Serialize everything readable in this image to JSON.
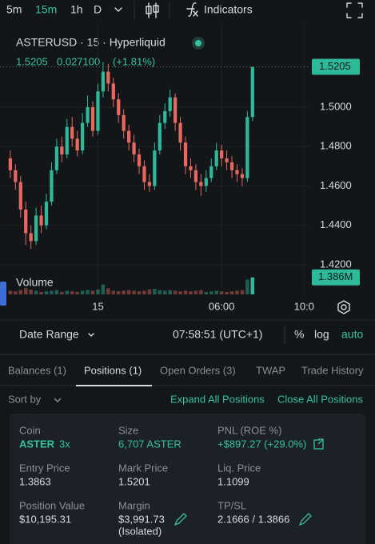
{
  "toolbar": {
    "intervals": [
      "5m",
      "15m",
      "1h",
      "D"
    ],
    "indicators": "Indicators"
  },
  "chart_data": {
    "type": "candlestick",
    "title": "ASTERUSD · 15 · Hyperliquid",
    "last_price": 1.5205,
    "change": "0.027100",
    "change_pct": "(+1.81%)",
    "x": [
      0,
      1,
      2,
      3,
      4,
      5,
      6,
      7,
      8,
      9,
      10,
      11,
      12,
      13,
      14,
      15,
      16,
      17,
      18,
      19,
      20,
      21,
      22,
      23,
      24,
      25,
      26,
      27,
      28,
      29,
      30,
      31,
      32,
      33,
      34,
      35,
      36,
      37,
      38,
      39,
      40,
      41,
      42,
      43,
      44,
      45,
      46,
      47
    ],
    "open": [
      1.474,
      1.468,
      1.462,
      1.448,
      1.436,
      1.432,
      1.445,
      1.44,
      1.452,
      1.468,
      1.48,
      1.476,
      1.49,
      1.484,
      1.478,
      1.492,
      1.5,
      1.488,
      1.508,
      1.518,
      1.512,
      1.504,
      1.496,
      1.488,
      1.482,
      1.476,
      1.47,
      1.462,
      1.46,
      1.478,
      1.492,
      1.498,
      1.505,
      1.492,
      1.482,
      1.47,
      1.468,
      1.462,
      1.46,
      1.464,
      1.47,
      1.478,
      1.474,
      1.472,
      1.468,
      1.466,
      1.464,
      1.495
    ],
    "high": [
      1.478,
      1.471,
      1.465,
      1.452,
      1.44,
      1.449,
      1.45,
      1.456,
      1.472,
      1.484,
      1.485,
      1.494,
      1.495,
      1.488,
      1.497,
      1.506,
      1.503,
      1.512,
      1.523,
      1.522,
      1.515,
      1.507,
      1.499,
      1.491,
      1.486,
      1.479,
      1.473,
      1.466,
      1.482,
      1.496,
      1.502,
      1.509,
      1.507,
      1.495,
      1.485,
      1.474,
      1.471,
      1.466,
      1.468,
      1.474,
      1.482,
      1.481,
      1.478,
      1.475,
      1.471,
      1.469,
      1.498,
      1.5205
    ],
    "low": [
      1.464,
      1.458,
      1.444,
      1.43,
      1.428,
      1.43,
      1.436,
      1.438,
      1.45,
      1.466,
      1.472,
      1.474,
      1.48,
      1.475,
      1.476,
      1.49,
      1.485,
      1.486,
      1.505,
      1.508,
      1.5,
      1.492,
      1.484,
      1.478,
      1.472,
      1.466,
      1.458,
      1.457,
      1.458,
      1.476,
      1.489,
      1.495,
      1.488,
      1.478,
      1.466,
      1.464,
      1.458,
      1.455,
      1.457,
      1.462,
      1.468,
      1.47,
      1.468,
      1.464,
      1.462,
      1.46,
      1.462,
      1.493
    ],
    "close": [
      1.468,
      1.462,
      1.448,
      1.436,
      1.432,
      1.445,
      1.44,
      1.452,
      1.468,
      1.48,
      1.476,
      1.49,
      1.484,
      1.478,
      1.492,
      1.5,
      1.488,
      1.508,
      1.518,
      1.512,
      1.504,
      1.496,
      1.488,
      1.482,
      1.476,
      1.47,
      1.462,
      1.46,
      1.478,
      1.492,
      1.498,
      1.505,
      1.492,
      1.482,
      1.47,
      1.468,
      1.462,
      1.46,
      1.464,
      1.47,
      1.478,
      1.474,
      1.472,
      1.468,
      1.466,
      1.464,
      1.495,
      1.5205
    ],
    "up_color": "#2fb99b",
    "down_color": "#e8685f",
    "ylim": [
      1.4163,
      1.526
    ],
    "yticks": [
      {
        "value": 1.42,
        "label": "1.4200"
      },
      {
        "value": 1.44,
        "label": "1.4400"
      },
      {
        "value": 1.46,
        "label": "1.4600"
      },
      {
        "value": 1.48,
        "label": "1.4800"
      },
      {
        "value": 1.5,
        "label": "1.5000"
      }
    ],
    "xlim": [
      -2,
      58.2
    ],
    "xticks": [
      {
        "value": 17,
        "label": "15"
      },
      {
        "value": 41,
        "label": "06:00"
      },
      {
        "value": 57,
        "label": "10:0"
      }
    ],
    "grid": true,
    "volume_title": "Volume",
    "volume": [
      0.3,
      0.25,
      0.35,
      0.5,
      0.4,
      0.3,
      0.2,
      0.25,
      0.3,
      0.35,
      0.2,
      0.3,
      0.25,
      0.2,
      0.3,
      0.35,
      0.3,
      0.4,
      0.8,
      0.5,
      0.3,
      0.25,
      0.3,
      0.35,
      0.3,
      0.25,
      0.3,
      0.4,
      0.45,
      0.35,
      0.3,
      0.35,
      0.3,
      0.25,
      0.3,
      0.25,
      0.3,
      0.35,
      0.2,
      0.25,
      0.3,
      0.25,
      0.2,
      0.25,
      0.3,
      0.35,
      1.2,
      1.386
    ],
    "volume_ylim": [
      0,
      1.5
    ],
    "volume_label": {
      "value": 1.386,
      "label": "1.386M"
    }
  },
  "chart_footer": {
    "date_range": "Date Range",
    "clock": "07:58:51 (UTC+1)",
    "percent": "%",
    "log": "log",
    "auto": "auto"
  },
  "tabs": [
    "Balances (1)",
    "Positions (1)",
    "Open Orders (3)",
    "TWAP",
    "Trade History"
  ],
  "positions_bar": {
    "sort_by": "Sort by",
    "expand_all": "Expand All Positions",
    "close_all": "Close All Positions"
  },
  "position": {
    "coin": {
      "label": "Coin",
      "value": "ASTER",
      "leverage": "3x"
    },
    "size": {
      "label": "Size",
      "value": "6,707 ASTER"
    },
    "pnl": {
      "label": "PNL (ROE %)",
      "value": "+$897.27 (+29.0%)"
    },
    "entry_price": {
      "label": "Entry Price",
      "value": "1.3863"
    },
    "mark_price": {
      "label": "Mark Price",
      "value": "1.5201"
    },
    "liq_price": {
      "label": "Liq. Price",
      "value": "1.1099"
    },
    "position_value": {
      "label": "Position Value",
      "value": "$10,195.31"
    },
    "margin": {
      "label": "Margin",
      "value": "$3,991.73",
      "note": "(Isolated)"
    },
    "tpsl": {
      "label": "TP/SL",
      "value": "2.1666 / 1.3866"
    }
  }
}
